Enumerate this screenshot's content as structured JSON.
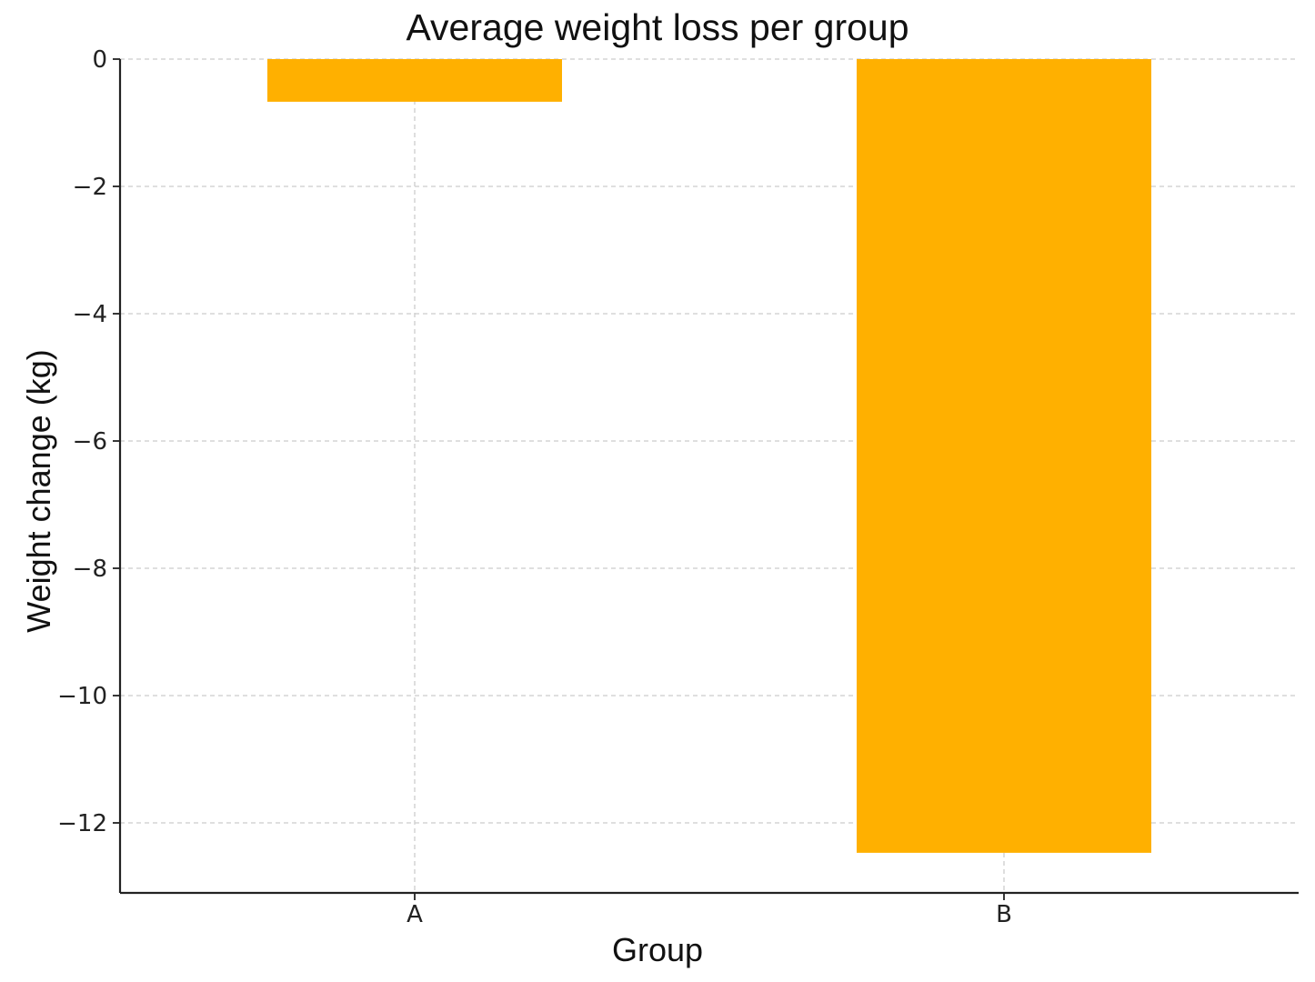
{
  "chart_data": {
    "type": "bar",
    "title": "Average weight loss per group",
    "xlabel": "Group",
    "ylabel": "Weight change (kg)",
    "categories": [
      "A",
      "B"
    ],
    "values": [
      -0.67,
      -12.47
    ],
    "ylim": [
      -13.1,
      0
    ],
    "yticks": [
      0,
      -2,
      -4,
      -6,
      -8,
      -10,
      -12
    ],
    "ytick_labels": [
      "0",
      "−2",
      "−4",
      "−6",
      "−8",
      "−10",
      "−12"
    ],
    "grid": true,
    "bar_color": "#FFB000"
  }
}
